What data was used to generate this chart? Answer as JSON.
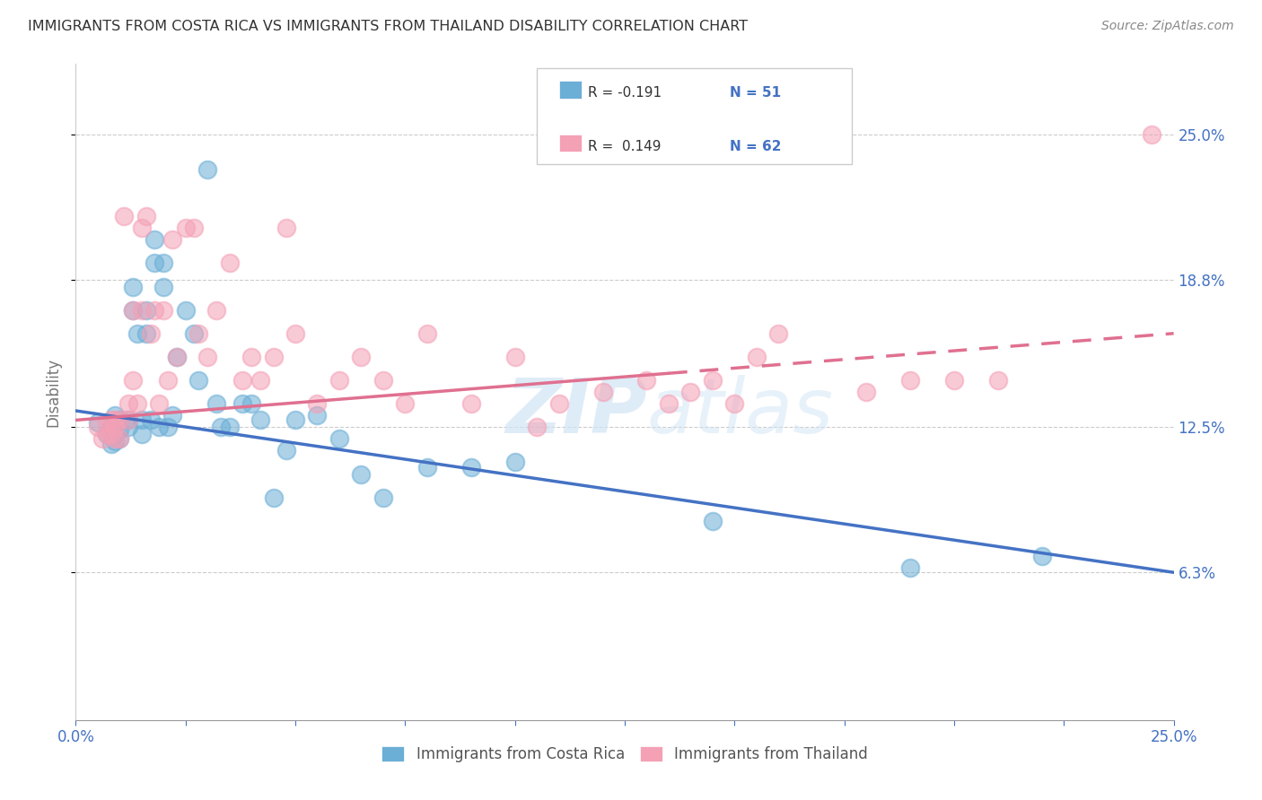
{
  "title": "IMMIGRANTS FROM COSTA RICA VS IMMIGRANTS FROM THAILAND DISABILITY CORRELATION CHART",
  "source": "Source: ZipAtlas.com",
  "ylabel": "Disability",
  "xmin": 0.0,
  "xmax": 0.25,
  "ymin": 0.0,
  "ymax": 0.28,
  "ytick_values": [
    0.063,
    0.125,
    0.188,
    0.25
  ],
  "ytick_labels": [
    "6.3%",
    "12.5%",
    "18.8%",
    "25.0%"
  ],
  "color_blue": "#6baed6",
  "color_pink": "#f4a0b5",
  "watermark": "ZIPatlas",
  "series1_label": "Immigrants from Costa Rica",
  "series2_label": "Immigrants from Thailand",
  "legend_R1": "R = -0.191",
  "legend_N1": "N = 51",
  "legend_R2": "R =  0.149",
  "legend_N2": "N = 62",
  "blue_line_x": [
    0.0,
    0.25
  ],
  "blue_line_y": [
    0.132,
    0.063
  ],
  "pink_line_x": [
    0.0,
    0.25
  ],
  "pink_line_y": [
    0.128,
    0.165
  ],
  "pink_line_solid_end": 0.135,
  "costa_rica_x": [
    0.005,
    0.007,
    0.008,
    0.008,
    0.009,
    0.009,
    0.009,
    0.01,
    0.01,
    0.01,
    0.012,
    0.012,
    0.013,
    0.013,
    0.014,
    0.015,
    0.015,
    0.016,
    0.016,
    0.017,
    0.018,
    0.018,
    0.019,
    0.02,
    0.02,
    0.021,
    0.022,
    0.023,
    0.025,
    0.027,
    0.028,
    0.03,
    0.032,
    0.033,
    0.035,
    0.038,
    0.04,
    0.042,
    0.045,
    0.048,
    0.05,
    0.055,
    0.06,
    0.065,
    0.07,
    0.08,
    0.09,
    0.1,
    0.145,
    0.19,
    0.22
  ],
  "costa_rica_y": [
    0.127,
    0.122,
    0.118,
    0.125,
    0.13,
    0.122,
    0.119,
    0.128,
    0.124,
    0.12,
    0.128,
    0.125,
    0.185,
    0.175,
    0.165,
    0.128,
    0.122,
    0.175,
    0.165,
    0.128,
    0.205,
    0.195,
    0.125,
    0.195,
    0.185,
    0.125,
    0.13,
    0.155,
    0.175,
    0.165,
    0.145,
    0.235,
    0.135,
    0.125,
    0.125,
    0.135,
    0.135,
    0.128,
    0.095,
    0.115,
    0.128,
    0.13,
    0.12,
    0.105,
    0.095,
    0.108,
    0.108,
    0.11,
    0.085,
    0.065,
    0.07
  ],
  "thailand_x": [
    0.005,
    0.006,
    0.007,
    0.007,
    0.008,
    0.008,
    0.009,
    0.009,
    0.009,
    0.01,
    0.01,
    0.011,
    0.012,
    0.012,
    0.013,
    0.013,
    0.014,
    0.015,
    0.015,
    0.016,
    0.017,
    0.018,
    0.019,
    0.02,
    0.021,
    0.022,
    0.023,
    0.025,
    0.027,
    0.028,
    0.03,
    0.032,
    0.035,
    0.038,
    0.04,
    0.042,
    0.045,
    0.048,
    0.05,
    0.055,
    0.06,
    0.065,
    0.07,
    0.075,
    0.08,
    0.09,
    0.1,
    0.105,
    0.11,
    0.12,
    0.13,
    0.135,
    0.14,
    0.145,
    0.15,
    0.155,
    0.16,
    0.18,
    0.19,
    0.2,
    0.21,
    0.245
  ],
  "thailand_y": [
    0.125,
    0.12,
    0.127,
    0.122,
    0.128,
    0.122,
    0.128,
    0.125,
    0.12,
    0.128,
    0.12,
    0.215,
    0.135,
    0.128,
    0.175,
    0.145,
    0.135,
    0.21,
    0.175,
    0.215,
    0.165,
    0.175,
    0.135,
    0.175,
    0.145,
    0.205,
    0.155,
    0.21,
    0.21,
    0.165,
    0.155,
    0.175,
    0.195,
    0.145,
    0.155,
    0.145,
    0.155,
    0.21,
    0.165,
    0.135,
    0.145,
    0.155,
    0.145,
    0.135,
    0.165,
    0.135,
    0.155,
    0.125,
    0.135,
    0.14,
    0.145,
    0.135,
    0.14,
    0.145,
    0.135,
    0.155,
    0.165,
    0.14,
    0.145,
    0.145,
    0.145,
    0.25
  ]
}
